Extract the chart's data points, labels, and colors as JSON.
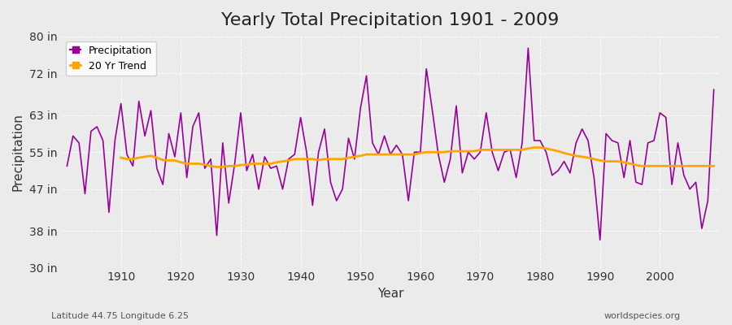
{
  "title": "Yearly Total Precipitation 1901 - 2009",
  "xlabel": "Year",
  "ylabel": "Precipitation",
  "lat_lon_label": "Latitude 44.75 Longitude 6.25",
  "source_label": "worldspecies.org",
  "years": [
    1901,
    1902,
    1903,
    1904,
    1905,
    1906,
    1907,
    1908,
    1909,
    1910,
    1911,
    1912,
    1913,
    1914,
    1915,
    1916,
    1917,
    1918,
    1919,
    1920,
    1921,
    1922,
    1923,
    1924,
    1925,
    1926,
    1927,
    1928,
    1929,
    1930,
    1931,
    1932,
    1933,
    1934,
    1935,
    1936,
    1937,
    1938,
    1939,
    1940,
    1941,
    1942,
    1943,
    1944,
    1945,
    1946,
    1947,
    1948,
    1949,
    1950,
    1951,
    1952,
    1953,
    1954,
    1955,
    1956,
    1957,
    1958,
    1959,
    1960,
    1961,
    1962,
    1963,
    1964,
    1965,
    1966,
    1967,
    1968,
    1969,
    1970,
    1971,
    1972,
    1973,
    1974,
    1975,
    1976,
    1977,
    1978,
    1979,
    1980,
    1981,
    1982,
    1983,
    1984,
    1985,
    1986,
    1987,
    1988,
    1989,
    1990,
    1991,
    1992,
    1993,
    1994,
    1995,
    1996,
    1997,
    1998,
    1999,
    2000,
    2001,
    2002,
    2003,
    2004,
    2005,
    2006,
    2007,
    2008,
    2009
  ],
  "precip_in": [
    52.0,
    58.5,
    57.0,
    46.0,
    59.5,
    60.5,
    57.5,
    42.0,
    57.5,
    65.5,
    54.5,
    52.0,
    66.0,
    58.5,
    64.0,
    51.5,
    48.0,
    59.0,
    54.0,
    63.5,
    49.5,
    60.5,
    63.5,
    51.5,
    53.5,
    37.0,
    57.0,
    44.0,
    52.5,
    63.5,
    51.0,
    54.5,
    47.0,
    54.0,
    51.5,
    52.0,
    47.0,
    53.5,
    54.5,
    62.5,
    55.0,
    43.5,
    55.0,
    60.0,
    48.5,
    44.5,
    47.0,
    58.0,
    53.5,
    64.5,
    71.5,
    57.0,
    54.5,
    58.5,
    54.5,
    56.5,
    54.5,
    44.5,
    55.0,
    55.0,
    73.0,
    64.0,
    54.5,
    48.5,
    53.5,
    65.0,
    50.5,
    55.0,
    53.5,
    55.0,
    63.5,
    55.0,
    51.0,
    55.0,
    55.5,
    49.5,
    57.0,
    77.5,
    57.5,
    57.5,
    55.0,
    50.0,
    51.0,
    53.0,
    50.5,
    57.0,
    60.0,
    57.5,
    49.5,
    36.0,
    59.0,
    57.5,
    57.0,
    49.5,
    57.5,
    48.5,
    48.0,
    57.0,
    57.5,
    63.5,
    62.5,
    48.0,
    57.0,
    50.0,
    47.0,
    48.5,
    38.5,
    44.5,
    68.5
  ],
  "trend_years": [
    1910,
    1911,
    1912,
    1913,
    1914,
    1915,
    1916,
    1917,
    1918,
    1919,
    1920,
    1921,
    1922,
    1923,
    1924,
    1925,
    1926,
    1927,
    1928,
    1929,
    1930,
    1931,
    1932,
    1933,
    1934,
    1935,
    1936,
    1937,
    1938,
    1939,
    1940,
    1941,
    1942,
    1943,
    1944,
    1945,
    1946,
    1947,
    1948,
    1949,
    1950,
    1951,
    1952,
    1953,
    1954,
    1955,
    1956,
    1957,
    1958,
    1959,
    1960,
    1961,
    1962,
    1963,
    1964,
    1965,
    1966,
    1967,
    1968,
    1969,
    1970,
    1971,
    1972,
    1973,
    1974,
    1975,
    1976,
    1977,
    1978,
    1979,
    1980,
    1981,
    1982,
    1983,
    1984,
    1985,
    1986,
    1987,
    1988,
    1989,
    1990,
    1991,
    1992,
    1993,
    1994,
    1995,
    1996,
    1997,
    1998,
    1999,
    2000,
    2001,
    2002,
    2003,
    2004,
    2005,
    2006,
    2007,
    2008,
    2009
  ],
  "trend_in": [
    53.8,
    53.5,
    53.5,
    53.8,
    54.0,
    54.2,
    53.8,
    53.3,
    53.2,
    53.2,
    52.8,
    52.5,
    52.5,
    52.5,
    52.3,
    52.0,
    51.8,
    51.8,
    52.0,
    52.0,
    52.2,
    52.3,
    52.5,
    52.5,
    52.5,
    52.5,
    52.8,
    53.0,
    53.2,
    53.5,
    53.5,
    53.5,
    53.5,
    53.3,
    53.5,
    53.5,
    53.5,
    53.5,
    53.8,
    54.0,
    54.2,
    54.5,
    54.5,
    54.5,
    54.5,
    54.5,
    54.5,
    54.5,
    54.5,
    54.5,
    54.8,
    55.0,
    55.0,
    55.0,
    55.0,
    55.2,
    55.2,
    55.2,
    55.2,
    55.2,
    55.5,
    55.5,
    55.5,
    55.5,
    55.5,
    55.5,
    55.5,
    55.5,
    55.8,
    56.0,
    56.0,
    55.8,
    55.5,
    55.2,
    54.8,
    54.5,
    54.2,
    54.0,
    53.8,
    53.5,
    53.2,
    53.0,
    53.0,
    53.0,
    52.8,
    52.5,
    52.2,
    52.0,
    52.0,
    52.0,
    52.0,
    52.0,
    52.0,
    52.0,
    52.0,
    52.0,
    52.0,
    52.0,
    52.0,
    52.0
  ],
  "precip_color": "#990099",
  "trend_color": "#FFA500",
  "bg_color": "#EBEBEB",
  "grid_color": "#FFFFFF",
  "ylim": [
    30,
    80
  ],
  "yticks": [
    30,
    38,
    47,
    55,
    63,
    72,
    80
  ],
  "ytick_labels": [
    "30 in",
    "38 in",
    "47 in",
    "55 in",
    "63 in",
    "72 in",
    "80 in"
  ],
  "xlim": [
    1900,
    2010
  ],
  "xticks": [
    1910,
    1920,
    1930,
    1940,
    1950,
    1960,
    1970,
    1980,
    1990,
    2000
  ],
  "title_fontsize": 16,
  "axis_label_fontsize": 11,
  "tick_fontsize": 10
}
